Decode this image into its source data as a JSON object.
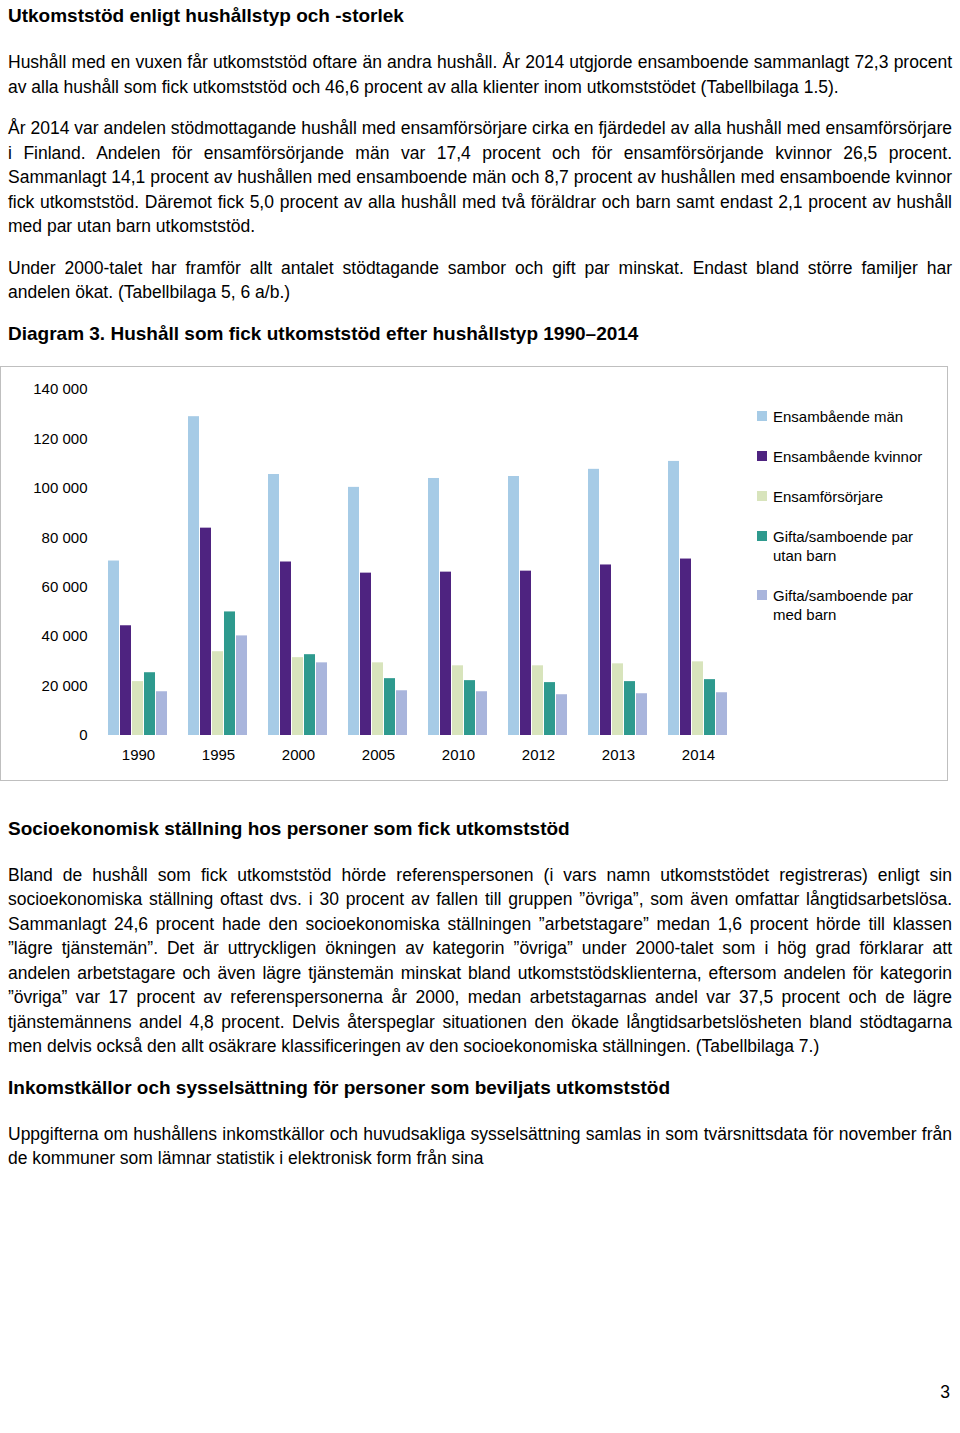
{
  "document": {
    "sections_before_chart": [
      {
        "heading": "Utkomststöd enligt hushållstyp och -storlek",
        "paragraphs": [
          "Hushåll med en vuxen får utkomststöd oftare än andra hushåll. År 2014 utgjorde ensamboende sammanlagt 72,3 procent av alla hushåll som fick utkomststöd och 46,6 procent av alla klienter inom utkomststödet (Tabellbilaga 1.5).",
          "År 2014 var andelen stödmottagande hushåll med ensamförsörjare cirka en fjärdedel av alla hushåll med ensamförsörjare i Finland. Andelen för ensamförsörjande män var 17,4 procent och för ensamförsörjande kvinnor 26,5 procent. Sammanlagt 14,1 procent av hushållen med ensamboende män och 8,7 procent av hushållen med ensamboende kvinnor fick utkomststöd. Däremot fick 5,0 procent av alla hushåll med två föräldrar och barn samt endast 2,1 procent av hushåll med par utan barn utkomststöd.",
          "Under 2000-talet har framför allt antalet stödtagande sambor och gift par minskat. Endast bland större familjer har andelen ökat. (Tabellbilaga 5, 6 a/b.)"
        ]
      }
    ],
    "sections_after_chart": [
      {
        "heading": "Socioekonomisk ställning hos personer som fick utkomststöd",
        "paragraphs": [
          "Bland de hushåll som fick utkomststöd hörde referenspersonen (i vars namn utkomststödet registreras) enligt sin socioekonomiska ställning oftast dvs. i 30 procent av fallen till gruppen ”övriga”, som även omfattar långtidsarbetslösa. Sammanlagt 24,6 procent hade den socioekonomiska ställningen ”arbetstagare” medan 1,6 procent hörde till klassen ”lägre tjänstemän”. Det är uttryckligen ökningen av kategorin ”övriga” under 2000-talet som i hög grad förklarar att andelen arbetstagare och även lägre tjänstemän minskat bland utkomststödsklienterna, eftersom andelen för kategorin ”övriga” var 17 procent av referenspersonerna år 2000, medan arbetstagarnas andel var 37,5 procent och de lägre tjänstemännens andel 4,8 procent. Delvis återspeglar situationen den ökade långtidsarbetslösheten bland stödtagarna men delvis också den allt osäkrare klassificeringen av den socioekonomiska ställningen. (Tabellbilaga 7.)"
        ]
      },
      {
        "heading": "Inkomstkällor och sysselsättning för personer som beviljats utkomststöd",
        "paragraphs": [
          "Uppgifterna om hushållens inkomstkällor och huvudsakliga sysselsättning samlas in som tvärsnittsdata för november från de kommuner som lämnar statistik i elektronisk form från sina"
        ]
      }
    ],
    "page_number": "3"
  },
  "chart_data": {
    "type": "bar",
    "title": "Diagram 3. Hushåll som fick utkomststöd efter hushållstyp 1990–2014",
    "categories": [
      "1990",
      "1995",
      "2000",
      "2005",
      "2010",
      "2012",
      "2013",
      "2014"
    ],
    "series": [
      {
        "name": "Ensambående män",
        "color": "#a6cbe6",
        "values": [
          70600,
          129000,
          105600,
          100400,
          104000,
          104800,
          107700,
          110900
        ]
      },
      {
        "name": "Ensambående kvinnor",
        "color": "#4e2380",
        "values": [
          44400,
          83900,
          70200,
          65700,
          66100,
          66500,
          69000,
          71400
        ]
      },
      {
        "name": "Ensamförsörjare",
        "color": "#d8e4bc",
        "values": [
          21800,
          33900,
          31500,
          29400,
          28200,
          28200,
          29000,
          29800
        ]
      },
      {
        "name": "Gifta/samboende par utan barn",
        "color": "#2e9a8e",
        "values": [
          25400,
          50000,
          32700,
          23000,
          22200,
          21400,
          21800,
          22600
        ]
      },
      {
        "name": "Gifta/samboende par med barn",
        "color": "#a9b5dc",
        "values": [
          17700,
          40300,
          29400,
          18100,
          17700,
          16500,
          16900,
          17300
        ]
      }
    ],
    "ylim": [
      0,
      140000
    ],
    "yticks": [
      0,
      {
        "value": 20000,
        "label": "20 000"
      },
      {
        "value": 40000,
        "label": "40 000"
      },
      {
        "value": 60000,
        "label": "60 000"
      },
      {
        "value": 80000,
        "label": "80 000"
      },
      {
        "value": 100000,
        "label": "100 000"
      },
      {
        "value": 120000,
        "label": "120 000"
      },
      {
        "value": 140000,
        "label": "140 000"
      }
    ],
    "grid": false,
    "legend": "right"
  }
}
